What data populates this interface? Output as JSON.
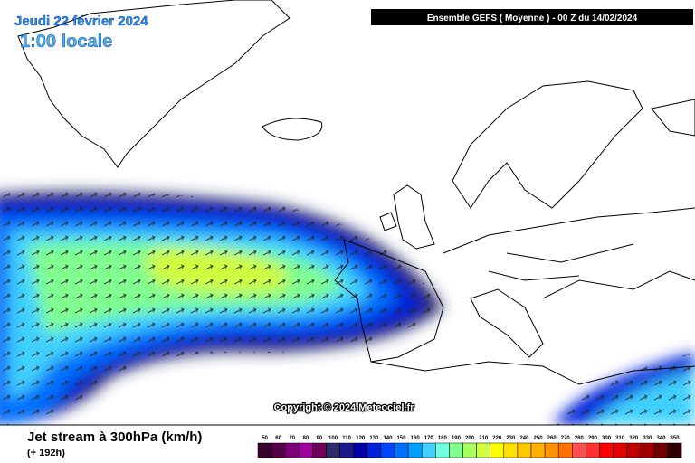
{
  "header": {
    "date": "Jeudi 22 février 2024",
    "hour": "1:00 locale",
    "run": "Ensemble GEFS  ( Moyenne )  -  00 Z du 14/02/2024"
  },
  "map": {
    "copyright": "Copyright © 2024 Meteociel.fr"
  },
  "legend": {
    "title": "Jet stream à 300hPa (km/h)",
    "subtitle": "(+ 192h)",
    "values": [
      50,
      60,
      70,
      80,
      90,
      100,
      110,
      120,
      130,
      140,
      150,
      160,
      170,
      180,
      190,
      200,
      210,
      220,
      230,
      240,
      250,
      260,
      270,
      280,
      290,
      300,
      310,
      320,
      330,
      340,
      350
    ],
    "colors": [
      "#3a0030",
      "#560048",
      "#7c0078",
      "#a000a0",
      "#6e0058",
      "#2c2c66",
      "#1a1a88",
      "#0000a8",
      "#0020d8",
      "#0046ff",
      "#0070ff",
      "#00a0ff",
      "#40d0ff",
      "#70ffe0",
      "#80ff90",
      "#a8ff60",
      "#d0ff40",
      "#ffff00",
      "#ffe000",
      "#ffc800",
      "#ffb000",
      "#ff9000",
      "#ff7000",
      "#ff5050",
      "#ff3030",
      "#ff0000",
      "#e00000",
      "#c00000",
      "#a00000",
      "#700000",
      "#300000"
    ]
  }
}
